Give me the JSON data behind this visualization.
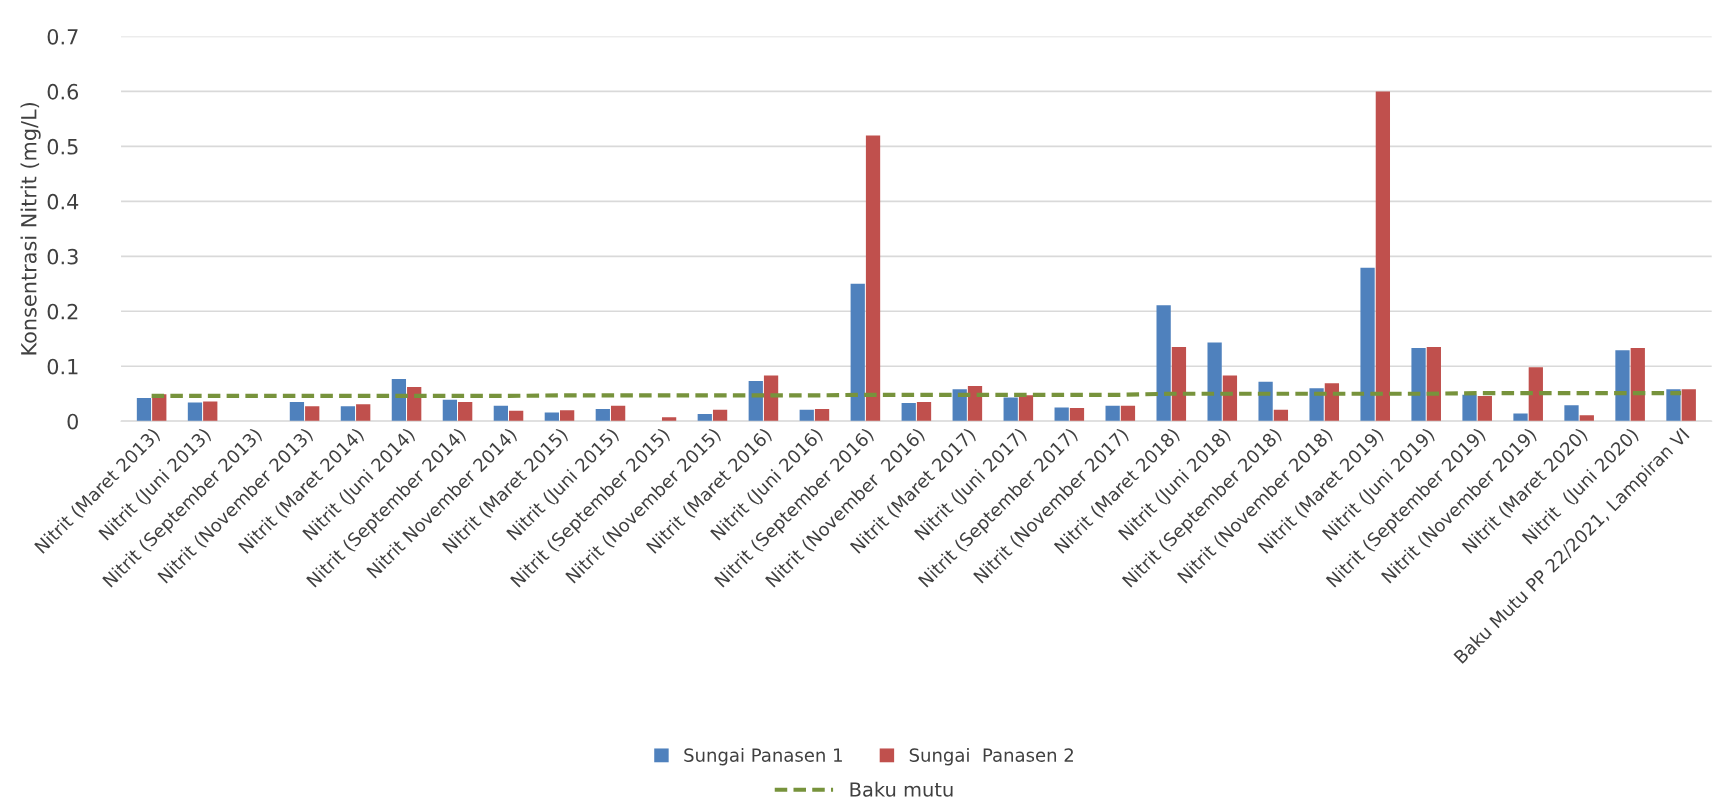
{
  "chart_data": {
    "type": "bar",
    "ylabel": "Konsentrasi Nitrit (mg/L)",
    "categories": [
      "Nitrit (Maret 2013)",
      "Nitrit (Juni 2013)",
      "Nitrit (September 2013)",
      "Nitrit (November 2013)",
      "Nitrit (Maret 2014)",
      "Nitrit (Juni 2014)",
      "Nitrit (September 2014)",
      "Nitrit November 2014)",
      "Nitrit (Maret 2015)",
      "Nitrit (Juni 2015)",
      "Nitrit (September 2015)",
      "Nitrit (November 2015)",
      "Nitrit (Maret 2016)",
      "Nitrit (Juni 2016)",
      "Nitrit (September 2016)",
      "Nitrit (November  2016)",
      "Nitrit (Maret 2017)",
      "Nitrit (Juni 2017)",
      "Nitrit (September 2017)",
      "Nitrit (November 2017)",
      "Nitrit (Maret 2018)",
      "Nitrit (Juni 2018)",
      "Nitrit (September 2018)",
      "Nitrit (November 2018)",
      "Nitrit (Maret 2019)",
      "Nitrit (Juni 2019)",
      "Nitrit (September 2019)",
      "Nitrit (November 2019)",
      "Nitrit (Maret 2020)",
      "Nitrit  (Juni 2020)",
      "Baku Mutu PP 22/2021, Lampiran VI"
    ],
    "series": [
      {
        "name": "Sungai Panasen 1",
        "color": "#4f81bd",
        "values": [
          0.042,
          0.034,
          0,
          0.035,
          0.027,
          0.077,
          0.039,
          0.028,
          0.016,
          0.022,
          0,
          0.013,
          0.073,
          0.021,
          0.25,
          0.033,
          0.058,
          0.043,
          0.025,
          0.028,
          0.211,
          0.143,
          0.072,
          0.06,
          0.279,
          0.133,
          0.048,
          0.014,
          0.029,
          0.129,
          0.058
        ]
      },
      {
        "name": "Sungai  Panasen 2",
        "color": "#c0504d",
        "values": [
          0.049,
          0.036,
          0,
          0.027,
          0.031,
          0.062,
          0.035,
          0.019,
          0.02,
          0.028,
          0.007,
          0.021,
          0.083,
          0.022,
          0.52,
          0.035,
          0.064,
          0.047,
          0.024,
          0.028,
          0.135,
          0.083,
          0.021,
          0.069,
          0.6,
          0.135,
          0.046,
          0.098,
          0.011,
          0.133,
          0.058
        ]
      },
      {
        "name": "Baku mutu",
        "type": "line",
        "color": "#77933c",
        "line_style": "dashed",
        "values": [
          0.046,
          0.046,
          0.046,
          0.046,
          0.046,
          0.046,
          0.046,
          0.046,
          0.047,
          0.047,
          0.047,
          0.047,
          0.047,
          0.047,
          0.048,
          0.048,
          0.048,
          0.048,
          0.048,
          0.048,
          0.05,
          0.05,
          0.05,
          0.05,
          0.05,
          0.05,
          0.051,
          0.051,
          0.051,
          0.051,
          0.051
        ]
      }
    ],
    "ylim": [
      0,
      0.7
    ],
    "yticks": [
      0,
      0.1,
      0.2,
      0.3,
      0.4,
      0.5,
      0.6,
      0.7
    ],
    "grid": "y",
    "legend": "bottom"
  }
}
